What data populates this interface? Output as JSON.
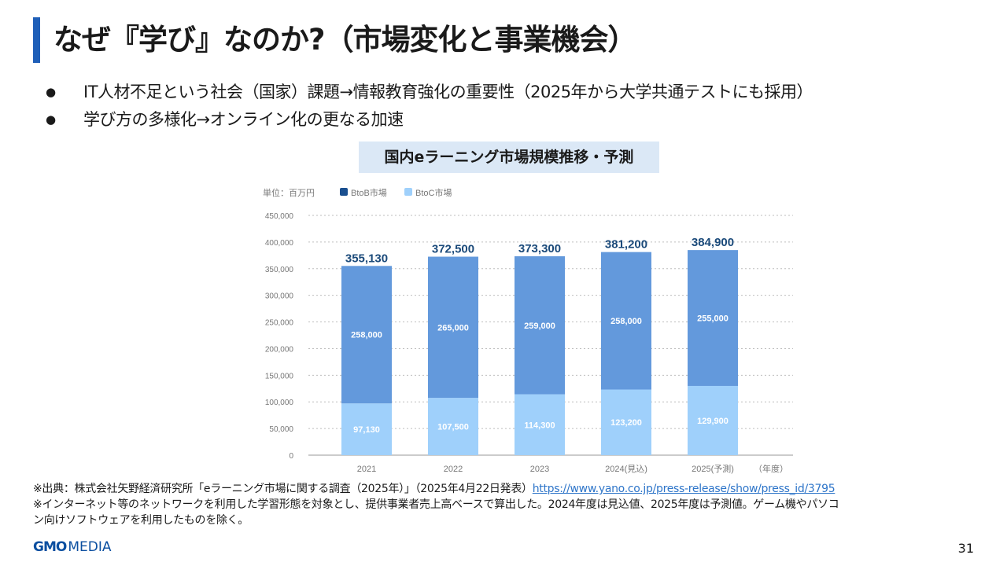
{
  "slide": {
    "title": "なぜ『学び』なのか?（市場変化と事業機会）",
    "bullets": [
      "IT人材不足という社会（国家）課題→情報教育強化の重要性（2025年から大学共通テストにも採用）",
      "学び方の多様化→オンライン化の更なる加速"
    ],
    "notes": {
      "source_prefix": "※出典：株式会社矢野経済研究所「eラーニング市場に関する調査（2025年）」（2025年4月22日発表）",
      "source_link": "https://www.yano.co.jp/press-release/show/press_id/3795",
      "line2": "※インターネット等のネットワークを利用した学習形態を対象とし、提供事業者売上高ベースで算出した。2024年度は見込値、2025年度は予測値。ゲーム機やパソコ",
      "line3": "ン向けソフトウェアを利用したものを除く。"
    },
    "logo": {
      "gmo": "GMO",
      "media": "MEDIA"
    },
    "page_number": "31"
  },
  "chart_data": {
    "type": "bar",
    "stacked": true,
    "title": "国内eラーニング市場規模推移・予測",
    "unit_label": "単位：百万円",
    "x_unit_label": "（年度）",
    "categories": [
      "2021",
      "2022",
      "2023",
      "2024(見込)",
      "2025(予測)"
    ],
    "series": [
      {
        "name": "BtoC市場",
        "color": "#9fd0fb",
        "values": [
          97130,
          107500,
          114300,
          123200,
          129900
        ],
        "labels": [
          "97,130",
          "107,500",
          "114,300",
          "123,200",
          "129,900"
        ]
      },
      {
        "name": "BtoB市場",
        "color": "#6399dc",
        "legend_color": "#1a4f8f",
        "values": [
          258000,
          265000,
          259000,
          258000,
          255000
        ],
        "labels": [
          "258,000",
          "265,000",
          "259,000",
          "258,000",
          "255,000"
        ]
      }
    ],
    "totals": [
      355130,
      372500,
      373300,
      381200,
      384900
    ],
    "total_labels": [
      "355,130",
      "372,500",
      "373,300",
      "381,200",
      "384,900"
    ],
    "ylim": [
      0,
      450000
    ],
    "yticks": [
      0,
      50000,
      100000,
      150000,
      200000,
      250000,
      300000,
      350000,
      400000,
      450000
    ],
    "ytick_labels": [
      "0",
      "50,000",
      "100,000",
      "150,000",
      "200,000",
      "250,000",
      "300,000",
      "350,000",
      "400,000",
      "450,000"
    ],
    "grid": true,
    "legend": "top-left",
    "total_label_color": "#1b4a7a"
  }
}
